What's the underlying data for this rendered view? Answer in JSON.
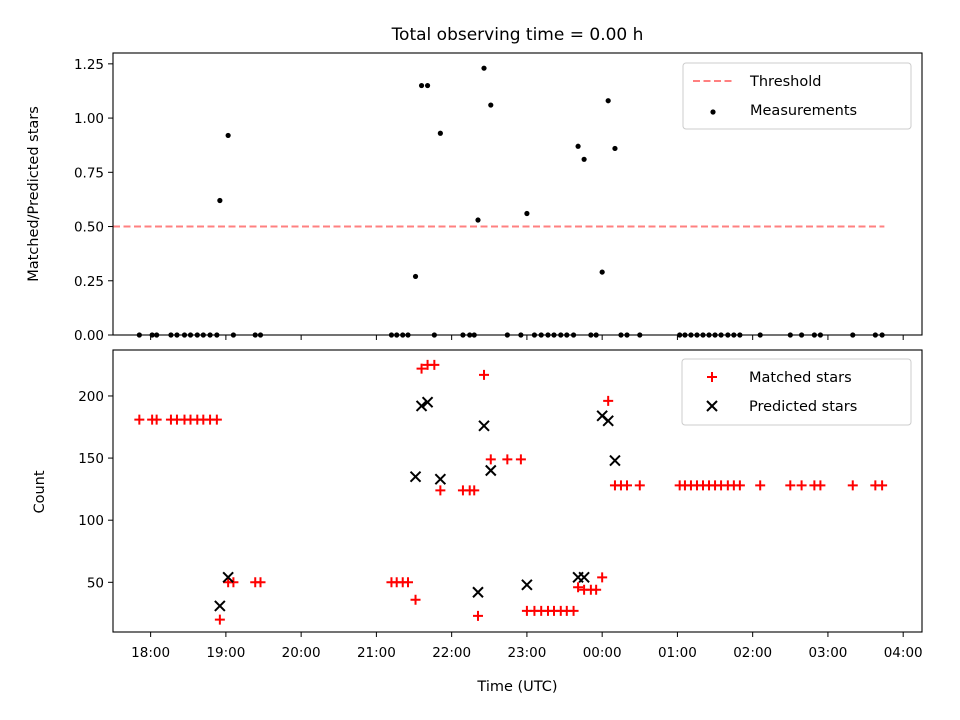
{
  "chart_data": [
    {
      "type": "scatter",
      "title": "Total observing time = 0.00 h",
      "ylabel": "Matched/Predicted stars",
      "xlabel": "",
      "xlim": [
        17.5,
        28.25
      ],
      "ylim": [
        0,
        1.3
      ],
      "x_ticks": [
        18,
        19,
        20,
        21,
        22,
        23,
        24,
        25,
        26,
        27,
        28
      ],
      "y_ticks": [
        0,
        0.25,
        0.5,
        0.75,
        1.0,
        1.25
      ],
      "y_tick_labels": [
        "0.00",
        "0.25",
        "0.50",
        "0.75",
        "1.00",
        "1.25"
      ],
      "legend_position": "top-right",
      "threshold": {
        "name": "Threshold",
        "x": [
          17.5,
          27.75
        ],
        "y": 0.5,
        "color": "#ff8080",
        "style": "dashed"
      },
      "series": [
        {
          "name": "Measurements",
          "color": "#000000",
          "marker": "dot",
          "points": [
            [
              17.85,
              0
            ],
            [
              18.02,
              0
            ],
            [
              18.08,
              0
            ],
            [
              18.27,
              0
            ],
            [
              18.35,
              0
            ],
            [
              18.45,
              0
            ],
            [
              18.53,
              0
            ],
            [
              18.62,
              0
            ],
            [
              18.7,
              0
            ],
            [
              18.79,
              0
            ],
            [
              18.88,
              0
            ],
            [
              18.92,
              0.62
            ],
            [
              19.03,
              0.92
            ],
            [
              19.1,
              0
            ],
            [
              19.39,
              0
            ],
            [
              19.46,
              0
            ],
            [
              21.2,
              0
            ],
            [
              21.27,
              0
            ],
            [
              21.35,
              0
            ],
            [
              21.42,
              0
            ],
            [
              21.52,
              0.27
            ],
            [
              21.6,
              1.15
            ],
            [
              21.68,
              1.15
            ],
            [
              21.77,
              0
            ],
            [
              21.85,
              0.93
            ],
            [
              22.15,
              0
            ],
            [
              22.24,
              0
            ],
            [
              22.3,
              0
            ],
            [
              22.35,
              0.53
            ],
            [
              22.43,
              1.23
            ],
            [
              22.52,
              1.06
            ],
            [
              22.74,
              0
            ],
            [
              22.92,
              0
            ],
            [
              23.0,
              0.56
            ],
            [
              23.1,
              0
            ],
            [
              23.19,
              0
            ],
            [
              23.28,
              0
            ],
            [
              23.36,
              0
            ],
            [
              23.45,
              0
            ],
            [
              23.53,
              0
            ],
            [
              23.62,
              0
            ],
            [
              23.68,
              0.87
            ],
            [
              23.76,
              0.81
            ],
            [
              23.85,
              0
            ],
            [
              23.92,
              0
            ],
            [
              24.0,
              0.29
            ],
            [
              24.08,
              1.08
            ],
            [
              24.17,
              0.86
            ],
            [
              24.25,
              0
            ],
            [
              24.33,
              0
            ],
            [
              24.5,
              0
            ],
            [
              25.03,
              0
            ],
            [
              25.1,
              0
            ],
            [
              25.18,
              0
            ],
            [
              25.26,
              0
            ],
            [
              25.34,
              0
            ],
            [
              25.42,
              0
            ],
            [
              25.5,
              0
            ],
            [
              25.58,
              0
            ],
            [
              25.67,
              0
            ],
            [
              25.75,
              0
            ],
            [
              25.83,
              0
            ],
            [
              26.1,
              0
            ],
            [
              26.5,
              0
            ],
            [
              26.65,
              0
            ],
            [
              26.82,
              0
            ],
            [
              26.9,
              0
            ],
            [
              27.33,
              0
            ],
            [
              27.63,
              0
            ],
            [
              27.72,
              0
            ]
          ]
        }
      ]
    },
    {
      "type": "scatter",
      "title": "",
      "ylabel": "Count",
      "xlabel": "Time (UTC)",
      "xlim": [
        17.5,
        28.25
      ],
      "ylim": [
        10,
        237
      ],
      "x_ticks": [
        18,
        19,
        20,
        21,
        22,
        23,
        24,
        25,
        26,
        27,
        28
      ],
      "x_tick_labels": [
        "18:00",
        "19:00",
        "20:00",
        "21:00",
        "22:00",
        "23:00",
        "00:00",
        "01:00",
        "02:00",
        "03:00",
        "04:00"
      ],
      "y_ticks": [
        50,
        100,
        150,
        200
      ],
      "y_tick_labels": [
        "50",
        "100",
        "150",
        "200"
      ],
      "legend_position": "top-right",
      "series": [
        {
          "name": "Matched stars",
          "color": "#ff0000",
          "marker": "plus",
          "points": [
            [
              17.85,
              181
            ],
            [
              18.02,
              181
            ],
            [
              18.08,
              181
            ],
            [
              18.27,
              181
            ],
            [
              18.35,
              181
            ],
            [
              18.45,
              181
            ],
            [
              18.53,
              181
            ],
            [
              18.62,
              181
            ],
            [
              18.7,
              181
            ],
            [
              18.79,
              181
            ],
            [
              18.88,
              181
            ],
            [
              18.92,
              20
            ],
            [
              19.03,
              50
            ],
            [
              19.1,
              50
            ],
            [
              19.39,
              50
            ],
            [
              19.46,
              50
            ],
            [
              21.2,
              50
            ],
            [
              21.27,
              50
            ],
            [
              21.35,
              50
            ],
            [
              21.42,
              50
            ],
            [
              21.52,
              36
            ],
            [
              21.6,
              222
            ],
            [
              21.68,
              225
            ],
            [
              21.77,
              225
            ],
            [
              21.85,
              124
            ],
            [
              22.15,
              124
            ],
            [
              22.24,
              124
            ],
            [
              22.3,
              124
            ],
            [
              22.35,
              23
            ],
            [
              22.43,
              217
            ],
            [
              22.52,
              149
            ],
            [
              22.74,
              149
            ],
            [
              22.92,
              149
            ],
            [
              23.0,
              27
            ],
            [
              23.1,
              27
            ],
            [
              23.19,
              27
            ],
            [
              23.28,
              27
            ],
            [
              23.36,
              27
            ],
            [
              23.45,
              27
            ],
            [
              23.53,
              27
            ],
            [
              23.62,
              27
            ],
            [
              23.68,
              46
            ],
            [
              23.76,
              44
            ],
            [
              23.85,
              44
            ],
            [
              23.92,
              44
            ],
            [
              24.0,
              54
            ],
            [
              24.08,
              196
            ],
            [
              24.17,
              128
            ],
            [
              24.25,
              128
            ],
            [
              24.33,
              128
            ],
            [
              24.5,
              128
            ],
            [
              25.03,
              128
            ],
            [
              25.1,
              128
            ],
            [
              25.18,
              128
            ],
            [
              25.26,
              128
            ],
            [
              25.34,
              128
            ],
            [
              25.42,
              128
            ],
            [
              25.5,
              128
            ],
            [
              25.58,
              128
            ],
            [
              25.67,
              128
            ],
            [
              25.75,
              128
            ],
            [
              25.83,
              128
            ],
            [
              26.1,
              128
            ],
            [
              26.5,
              128
            ],
            [
              26.65,
              128
            ],
            [
              26.82,
              128
            ],
            [
              26.9,
              128
            ],
            [
              27.33,
              128
            ],
            [
              27.63,
              128
            ],
            [
              27.72,
              128
            ]
          ]
        },
        {
          "name": "Predicted stars",
          "color": "#000000",
          "marker": "x",
          "points": [
            [
              18.92,
              31
            ],
            [
              19.03,
              54
            ],
            [
              21.52,
              135
            ],
            [
              21.6,
              192
            ],
            [
              21.68,
              195
            ],
            [
              21.85,
              133
            ],
            [
              22.35,
              42
            ],
            [
              22.43,
              176
            ],
            [
              22.52,
              140
            ],
            [
              23.0,
              48
            ],
            [
              23.68,
              54
            ],
            [
              23.76,
              54
            ],
            [
              24.0,
              184
            ],
            [
              24.08,
              180
            ],
            [
              24.17,
              148
            ]
          ]
        }
      ]
    }
  ]
}
